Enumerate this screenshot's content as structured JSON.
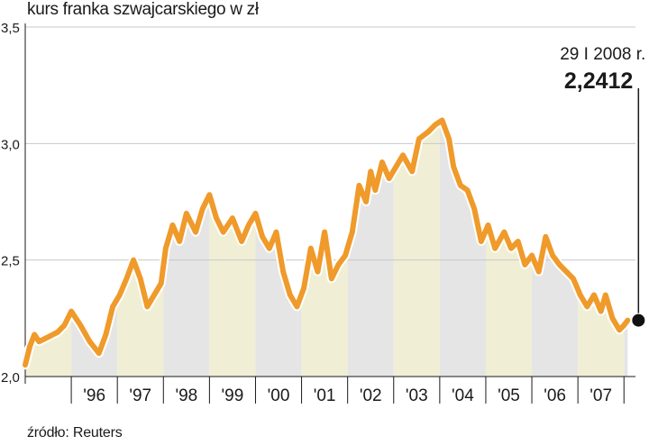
{
  "title": "kurs franka szwajcarskiego w zł",
  "source": "źródło: Reuters",
  "chart_data": {
    "type": "line",
    "title": "kurs franka szwajcarskiego w zł",
    "xlabel": "",
    "ylabel": "",
    "ylim": [
      2.0,
      3.5
    ],
    "yticks": [
      "2,0",
      "2,5",
      "3,0",
      "3,5"
    ],
    "categories": [
      "'96",
      "'97",
      "'98",
      "'99",
      "'00",
      "'01",
      "'02",
      "'03",
      "'04",
      "'05",
      "'06",
      "'07"
    ],
    "grid": true,
    "annotation": {
      "date": "29 I 2008 r.",
      "value_text": "2,2412",
      "value": 2.2412
    },
    "series": [
      {
        "values": [
          [
            1995.0,
            2.05
          ],
          [
            1995.1,
            2.13
          ],
          [
            1995.2,
            2.18
          ],
          [
            1995.3,
            2.15
          ],
          [
            1995.5,
            2.17
          ],
          [
            1995.7,
            2.19
          ],
          [
            1995.85,
            2.22
          ],
          [
            1996.0,
            2.28
          ],
          [
            1996.2,
            2.22
          ],
          [
            1996.4,
            2.15
          ],
          [
            1996.6,
            2.1
          ],
          [
            1996.75,
            2.18
          ],
          [
            1996.9,
            2.3
          ],
          [
            1997.05,
            2.35
          ],
          [
            1997.2,
            2.42
          ],
          [
            1997.35,
            2.5
          ],
          [
            1997.5,
            2.42
          ],
          [
            1997.65,
            2.3
          ],
          [
            1997.8,
            2.35
          ],
          [
            1997.95,
            2.4
          ],
          [
            1998.05,
            2.55
          ],
          [
            1998.2,
            2.65
          ],
          [
            1998.35,
            2.58
          ],
          [
            1998.5,
            2.7
          ],
          [
            1998.7,
            2.62
          ],
          [
            1998.85,
            2.72
          ],
          [
            1999.0,
            2.78
          ],
          [
            1999.15,
            2.68
          ],
          [
            1999.3,
            2.62
          ],
          [
            1999.5,
            2.68
          ],
          [
            1999.7,
            2.58
          ],
          [
            1999.85,
            2.65
          ],
          [
            2000.0,
            2.7
          ],
          [
            2000.15,
            2.6
          ],
          [
            2000.3,
            2.55
          ],
          [
            2000.45,
            2.62
          ],
          [
            2000.6,
            2.45
          ],
          [
            2000.75,
            2.35
          ],
          [
            2000.9,
            2.3
          ],
          [
            2001.05,
            2.38
          ],
          [
            2001.2,
            2.55
          ],
          [
            2001.35,
            2.45
          ],
          [
            2001.5,
            2.62
          ],
          [
            2001.65,
            2.42
          ],
          [
            2001.8,
            2.48
          ],
          [
            2001.95,
            2.52
          ],
          [
            2002.1,
            2.62
          ],
          [
            2002.25,
            2.82
          ],
          [
            2002.4,
            2.75
          ],
          [
            2002.5,
            2.88
          ],
          [
            2002.6,
            2.8
          ],
          [
            2002.75,
            2.92
          ],
          [
            2002.9,
            2.85
          ],
          [
            2003.05,
            2.9
          ],
          [
            2003.2,
            2.95
          ],
          [
            2003.4,
            2.88
          ],
          [
            2003.55,
            3.02
          ],
          [
            2003.75,
            3.05
          ],
          [
            2003.9,
            3.08
          ],
          [
            2004.05,
            3.1
          ],
          [
            2004.2,
            3.02
          ],
          [
            2004.3,
            2.9
          ],
          [
            2004.45,
            2.82
          ],
          [
            2004.6,
            2.8
          ],
          [
            2004.75,
            2.72
          ],
          [
            2004.9,
            2.58
          ],
          [
            2005.05,
            2.65
          ],
          [
            2005.2,
            2.55
          ],
          [
            2005.4,
            2.62
          ],
          [
            2005.55,
            2.55
          ],
          [
            2005.7,
            2.58
          ],
          [
            2005.85,
            2.48
          ],
          [
            2006.0,
            2.52
          ],
          [
            2006.15,
            2.45
          ],
          [
            2006.3,
            2.6
          ],
          [
            2006.45,
            2.52
          ],
          [
            2006.6,
            2.48
          ],
          [
            2006.75,
            2.45
          ],
          [
            2006.9,
            2.42
          ],
          [
            2007.05,
            2.35
          ],
          [
            2007.2,
            2.3
          ],
          [
            2007.35,
            2.35
          ],
          [
            2007.5,
            2.28
          ],
          [
            2007.6,
            2.35
          ],
          [
            2007.75,
            2.25
          ],
          [
            2007.9,
            2.2
          ],
          [
            2008.0,
            2.22
          ],
          [
            2008.08,
            2.2412
          ]
        ]
      }
    ]
  },
  "colors": {
    "line": "#ef9a2a",
    "band_fill": "#e5e5e5",
    "band_fill_alt": "#f0efd6",
    "grid": "#c8c8c8",
    "axis": "#1a1a1a",
    "marker": "#111111"
  }
}
